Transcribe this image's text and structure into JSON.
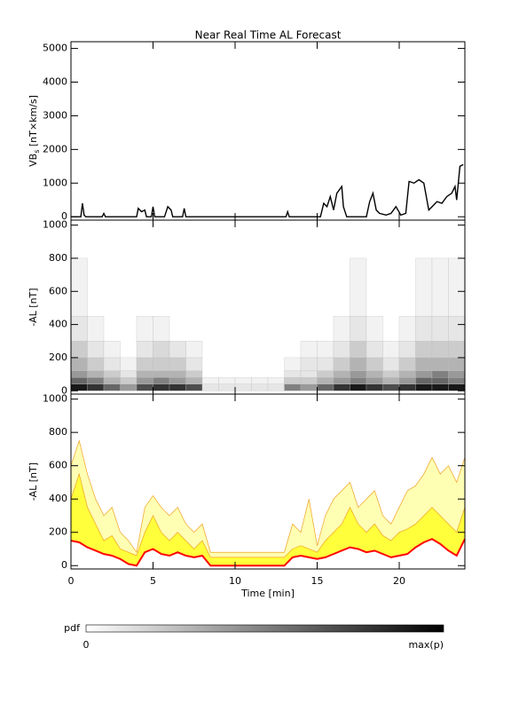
{
  "chart_data": [
    {
      "type": "line",
      "title": "Near Real Time AL Forecast",
      "ylabel": [
        "VB",
        "s",
        " [nT×km/s]"
      ],
      "color": "#000000",
      "x": [
        0,
        0.6,
        0.7,
        0.8,
        0.9,
        1.9,
        2,
        2.1,
        4,
        4.1,
        4.3,
        4.5,
        4.6,
        4.9,
        5,
        5.1,
        5.7,
        5.9,
        6.1,
        6.2,
        6.8,
        6.9,
        7,
        13.1,
        13.2,
        13.3,
        15.2,
        15.4,
        15.6,
        15.8,
        16,
        16.2,
        16.5,
        16.6,
        16.8,
        18,
        18.2,
        18.4,
        18.6,
        18.8,
        19.2,
        19.5,
        19.8,
        20.1,
        20.4,
        20.6,
        20.9,
        21.2,
        21.5,
        21.8,
        22,
        22.3,
        22.6,
        22.9,
        23.2,
        23.4,
        23.5,
        23.7,
        23.9
      ],
      "values": [
        0,
        0,
        400,
        50,
        0,
        0,
        100,
        0,
        0,
        250,
        150,
        200,
        0,
        0,
        300,
        0,
        0,
        300,
        200,
        0,
        0,
        250,
        0,
        0,
        150,
        0,
        0,
        400,
        300,
        600,
        200,
        700,
        900,
        300,
        0,
        0,
        450,
        700,
        200,
        100,
        50,
        100,
        300,
        50,
        100,
        1050,
        1000,
        1100,
        1000,
        200,
        300,
        450,
        400,
        600,
        700,
        900,
        500,
        1500,
        1550
      ],
      "xlim": [
        0,
        24
      ],
      "xticks": [
        0,
        5,
        10,
        15,
        20
      ],
      "ylim": [
        -100,
        5200
      ],
      "yticks": [
        0,
        1000,
        2000,
        3000,
        4000,
        5000
      ]
    },
    {
      "type": "heatmap",
      "ylabel": "-AL [nT]",
      "x_edges": [
        0,
        1,
        2,
        3,
        4,
        5,
        6,
        7,
        8,
        9,
        10,
        11,
        12,
        13,
        14,
        15,
        16,
        17,
        18,
        19,
        20,
        21,
        22,
        23,
        24
      ],
      "y_edges": [
        0,
        40,
        80,
        120,
        200,
        300,
        450,
        800
      ],
      "z": [
        [
          0.9,
          0.6,
          0.4,
          0.3,
          0.2,
          0.1,
          0.05
        ],
        [
          0.8,
          0.5,
          0.3,
          0.2,
          0.1,
          0.05,
          0
        ],
        [
          0.6,
          0.3,
          0.2,
          0.1,
          0.05,
          0,
          0
        ],
        [
          0.4,
          0.2,
          0.1,
          0.05,
          0,
          0,
          0
        ],
        [
          0.7,
          0.4,
          0.3,
          0.2,
          0.1,
          0.05,
          0
        ],
        [
          0.8,
          0.5,
          0.3,
          0.2,
          0.15,
          0.05,
          0
        ],
        [
          0.8,
          0.4,
          0.3,
          0.2,
          0.1,
          0,
          0
        ],
        [
          0.7,
          0.3,
          0.2,
          0.1,
          0.05,
          0,
          0
        ],
        [
          0.1,
          0.05,
          0,
          0,
          0,
          0,
          0
        ],
        [
          0.1,
          0.05,
          0,
          0,
          0,
          0,
          0
        ],
        [
          0.1,
          0.05,
          0,
          0,
          0,
          0,
          0
        ],
        [
          0.1,
          0.05,
          0,
          0,
          0,
          0,
          0
        ],
        [
          0.1,
          0.05,
          0,
          0,
          0,
          0,
          0
        ],
        [
          0.5,
          0.2,
          0.1,
          0.05,
          0,
          0,
          0
        ],
        [
          0.4,
          0.2,
          0.1,
          0.1,
          0.05,
          0,
          0
        ],
        [
          0.6,
          0.3,
          0.2,
          0.1,
          0.05,
          0,
          0
        ],
        [
          0.8,
          0.4,
          0.3,
          0.2,
          0.1,
          0.05,
          0
        ],
        [
          0.9,
          0.5,
          0.4,
          0.3,
          0.2,
          0.1,
          0.05
        ],
        [
          0.8,
          0.4,
          0.3,
          0.2,
          0.1,
          0.05,
          0
        ],
        [
          0.7,
          0.3,
          0.2,
          0.1,
          0.05,
          0,
          0
        ],
        [
          0.8,
          0.4,
          0.3,
          0.2,
          0.1,
          0.05,
          0
        ],
        [
          0.9,
          0.6,
          0.4,
          0.3,
          0.2,
          0.1,
          0.05
        ],
        [
          0.9,
          0.6,
          0.5,
          0.3,
          0.2,
          0.1,
          0.05
        ],
        [
          0.9,
          0.5,
          0.4,
          0.3,
          0.2,
          0.1,
          0.05
        ]
      ],
      "xlim": [
        0,
        24
      ],
      "xticks": [
        0,
        5,
        10,
        15,
        20
      ],
      "ylim": [
        -20,
        1030
      ],
      "yticks": [
        0,
        200,
        400,
        600,
        800,
        1000
      ]
    },
    {
      "type": "band",
      "ylabel": "-AL [nT]",
      "xlabel": "Time [min]",
      "x": [
        0,
        0.5,
        1,
        1.5,
        2,
        2.5,
        3,
        3.5,
        4,
        4.5,
        5,
        5.5,
        6,
        6.5,
        7,
        7.5,
        8,
        8.5,
        9,
        9.5,
        10,
        10.5,
        11,
        11.5,
        12,
        12.5,
        13,
        13.5,
        14,
        14.5,
        15,
        15.5,
        16,
        16.5,
        17,
        17.5,
        18,
        18.5,
        19,
        19.5,
        20,
        20.5,
        21,
        21.5,
        22,
        22.5,
        23,
        23.5,
        24
      ],
      "series": [
        {
          "color": "#ffffb4",
          "values": [
            600,
            750,
            550,
            400,
            300,
            350,
            200,
            150,
            80,
            350,
            420,
            350,
            300,
            350,
            250,
            200,
            250,
            80,
            80,
            80,
            80,
            80,
            80,
            80,
            80,
            80,
            80,
            250,
            200,
            400,
            120,
            300,
            400,
            450,
            500,
            350,
            400,
            450,
            300,
            250,
            350,
            450,
            480,
            550,
            650,
            550,
            600,
            500,
            650
          ]
        },
        {
          "color": "#ffff3c",
          "values": [
            400,
            550,
            350,
            250,
            150,
            180,
            100,
            80,
            60,
            200,
            300,
            200,
            150,
            200,
            150,
            100,
            150,
            50,
            50,
            50,
            50,
            50,
            50,
            50,
            50,
            50,
            50,
            100,
            120,
            100,
            80,
            150,
            200,
            250,
            350,
            250,
            200,
            250,
            180,
            150,
            200,
            220,
            250,
            300,
            350,
            300,
            250,
            200,
            350
          ]
        },
        {
          "color": "#ff0000",
          "values": [
            150,
            140,
            110,
            90,
            70,
            60,
            40,
            10,
            0,
            80,
            100,
            70,
            60,
            80,
            60,
            50,
            60,
            0,
            0,
            0,
            0,
            0,
            0,
            0,
            0,
            0,
            0,
            50,
            60,
            50,
            40,
            50,
            70,
            90,
            110,
            100,
            80,
            90,
            70,
            50,
            60,
            70,
            110,
            140,
            160,
            130,
            90,
            60,
            160
          ]
        }
      ],
      "xlim": [
        0,
        24
      ],
      "xticks": [
        0,
        5,
        10,
        15,
        20
      ],
      "ylim": [
        -20,
        1030
      ],
      "yticks": [
        0,
        200,
        400,
        600,
        800,
        1000
      ]
    }
  ],
  "colorbar": {
    "label": "pdf",
    "min_label": "0",
    "max_label": "max(p)"
  }
}
